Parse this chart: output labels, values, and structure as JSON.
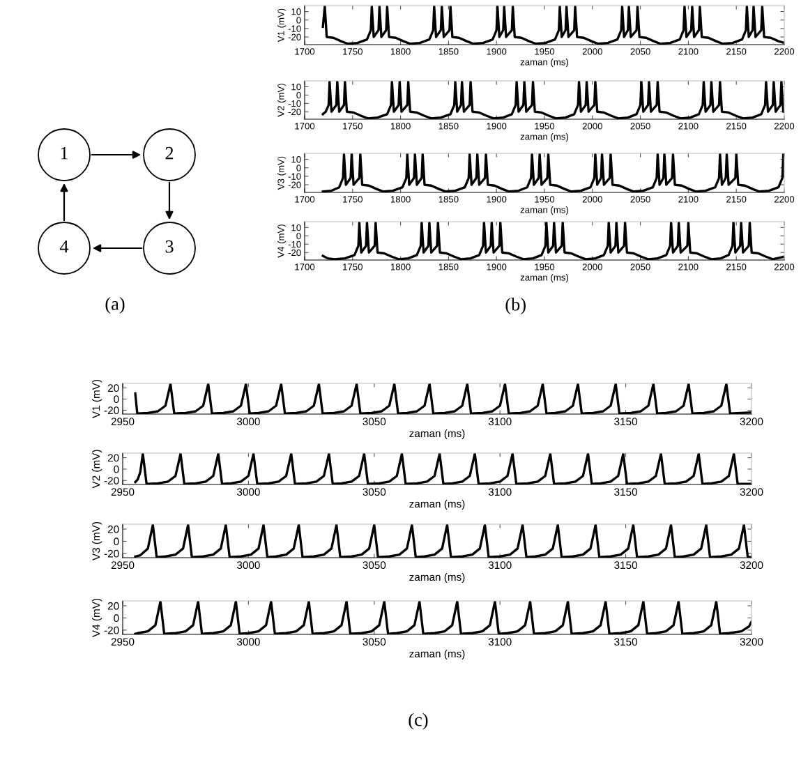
{
  "chart_data": [
    {
      "type": "other",
      "title": "(a)",
      "annotations": [
        "1",
        "2",
        "3",
        "4"
      ]
    },
    {
      "type": "line",
      "xlabel": "zaman (ms)",
      "ylabel": "V1 (mV)",
      "xlim": [
        1700,
        2200
      ],
      "xticks": [
        1700,
        1750,
        1800,
        1850,
        1900,
        1950,
        2000,
        2050,
        2100,
        2150,
        2200
      ],
      "ylim": [
        -29,
        17
      ],
      "yticks": [
        -20,
        -10,
        0,
        10
      ],
      "series": [
        {
          "color": "#000000",
          "x": [
            1719,
            1721,
            1723,
            1730,
            1738,
            1745,
            1755,
            1765,
            1769,
            1770,
            1772,
            1777,
            1778,
            1780,
            1785,
            1786,
            1788,
            1795,
            1803,
            1810,
            1820,
            1830,
            1834,
            1835,
            1837,
            1842,
            1843,
            1845,
            1851,
            1852,
            1854,
            1861,
            1869,
            1876,
            1886,
            1896,
            1900,
            1901,
            1903,
            1907,
            1908,
            1910,
            1916,
            1917,
            1919,
            1926,
            1934,
            1941,
            1951,
            1961,
            1965,
            1966,
            1968,
            1972,
            1973,
            1975,
            1981,
            1982,
            1984,
            1991,
            1999,
            2006,
            2016,
            2026,
            2030,
            2031,
            2033,
            2037,
            2038,
            2040,
            2046,
            2047,
            2049,
            2056,
            2064,
            2071,
            2081,
            2091,
            2095,
            2096,
            2098,
            2103,
            2104,
            2106,
            2111,
            2112,
            2114,
            2121,
            2129,
            2136,
            2146,
            2156,
            2160,
            2161,
            2163,
            2167,
            2168,
            2170,
            2176,
            2177,
            2179,
            2186,
            2194,
            2200
          ],
          "values": [
            -8,
            16,
            -20,
            -21,
            -25,
            -28,
            -27,
            -23,
            -12,
            16,
            -20,
            -12,
            16,
            -20,
            -12,
            16,
            -20,
            -21,
            -25,
            -28,
            -27,
            -23,
            -12,
            16,
            -20,
            -12,
            16,
            -20,
            -12,
            16,
            -20,
            -21,
            -25,
            -28,
            -27,
            -23,
            -12,
            16,
            -20,
            -12,
            16,
            -20,
            -12,
            16,
            -20,
            -21,
            -25,
            -28,
            -27,
            -23,
            -12,
            16,
            -20,
            -12,
            16,
            -20,
            -12,
            16,
            -20,
            -21,
            -25,
            -28,
            -27,
            -23,
            -12,
            16,
            -20,
            -12,
            16,
            -20,
            -12,
            16,
            -20,
            -21,
            -25,
            -28,
            -27,
            -23,
            -12,
            16,
            -20,
            -12,
            16,
            -20,
            -12,
            16,
            -20,
            -21,
            -25,
            -28,
            -27,
            -23,
            -12,
            16,
            -20,
            -12,
            16,
            -20,
            -12,
            16,
            -20,
            -21,
            -25,
            -27
          ]
        }
      ]
    },
    {
      "type": "line",
      "xlabel": "zaman (ms)",
      "ylabel": "V2 (mV)",
      "xlim": [
        1700,
        2200
      ],
      "xticks": [
        1700,
        1750,
        1800,
        1850,
        1900,
        1950,
        2000,
        2050,
        2100,
        2150,
        2200
      ],
      "ylim": [
        -29,
        17
      ],
      "yticks": [
        -20,
        -10,
        0,
        10
      ],
      "series": [
        {
          "color": "#000000",
          "x": [
            1719,
            1722,
            1725,
            1726,
            1728,
            1733,
            1734,
            1736,
            1741,
            1742,
            1744,
            1751,
            1759,
            1766,
            1776,
            1786,
            1790,
            1791,
            1793,
            1798,
            1799,
            1801,
            1807,
            1808,
            1810,
            1817,
            1825,
            1832,
            1842,
            1852,
            1856,
            1857,
            1859,
            1863,
            1864,
            1866,
            1872,
            1873,
            1875,
            1882,
            1890,
            1897,
            1907,
            1916,
            1920,
            1921,
            1923,
            1928,
            1929,
            1931,
            1937,
            1938,
            1940,
            1947,
            1955,
            1962,
            1972,
            1981,
            1985,
            1986,
            1988,
            1993,
            1994,
            1996,
            2002,
            2003,
            2005,
            2012,
            2020,
            2027,
            2037,
            2046,
            2050,
            2051,
            2053,
            2058,
            2059,
            2061,
            2067,
            2068,
            2070,
            2077,
            2085,
            2092,
            2102,
            2111,
            2115,
            2116,
            2118,
            2123,
            2124,
            2126,
            2132,
            2133,
            2135,
            2142,
            2150,
            2157,
            2167,
            2176,
            2180,
            2181,
            2183,
            2188,
            2189,
            2191,
            2196,
            2197,
            2199,
            2200
          ],
          "values": [
            -23,
            -20,
            -12,
            16,
            -20,
            -12,
            16,
            -20,
            -12,
            16,
            -20,
            -21,
            -25,
            -28,
            -27,
            -23,
            -12,
            16,
            -20,
            -12,
            16,
            -20,
            -12,
            16,
            -20,
            -21,
            -25,
            -28,
            -27,
            -23,
            -12,
            16,
            -20,
            -12,
            16,
            -20,
            -12,
            16,
            -20,
            -21,
            -25,
            -28,
            -27,
            -23,
            -12,
            16,
            -20,
            -12,
            16,
            -20,
            -12,
            16,
            -20,
            -21,
            -25,
            -28,
            -27,
            -23,
            -12,
            16,
            -20,
            -12,
            16,
            -20,
            -12,
            16,
            -20,
            -21,
            -25,
            -28,
            -27,
            -23,
            -12,
            16,
            -20,
            -12,
            16,
            -20,
            -12,
            16,
            -20,
            -21,
            -25,
            -28,
            -27,
            -23,
            -12,
            16,
            -20,
            -12,
            16,
            -20,
            -12,
            16,
            -20,
            -21,
            -25,
            -28,
            -27,
            -23,
            -12,
            16,
            -20,
            -12,
            16,
            -20,
            -12,
            16,
            -20,
            -20
          ]
        }
      ]
    },
    {
      "type": "line",
      "xlabel": "zaman (ms)",
      "ylabel": "V3 (mV)",
      "xlim": [
        1700,
        2200
      ],
      "xticks": [
        1700,
        1750,
        1800,
        1850,
        1900,
        1950,
        2000,
        2050,
        2100,
        2150,
        2200
      ],
      "ylim": [
        -29,
        17
      ],
      "yticks": [
        -20,
        -10,
        0,
        10
      ],
      "series": [
        {
          "color": "#000000",
          "x": [
            1719,
            1728,
            1736,
            1740,
            1741,
            1743,
            1748,
            1749,
            1751,
            1757,
            1758,
            1760,
            1767,
            1775,
            1782,
            1792,
            1802,
            1806,
            1807,
            1809,
            1814,
            1815,
            1817,
            1822,
            1823,
            1825,
            1832,
            1840,
            1847,
            1857,
            1867,
            1871,
            1872,
            1874,
            1879,
            1880,
            1882,
            1888,
            1889,
            1891,
            1898,
            1906,
            1913,
            1923,
            1932,
            1936,
            1937,
            1939,
            1944,
            1945,
            1947,
            1953,
            1954,
            1956,
            1963,
            1971,
            1978,
            1988,
            1998,
            2002,
            2003,
            2005,
            2009,
            2010,
            2012,
            2018,
            2019,
            2021,
            2028,
            2036,
            2043,
            2053,
            2063,
            2067,
            2068,
            2070,
            2074,
            2075,
            2077,
            2083,
            2084,
            2086,
            2093,
            2101,
            2108,
            2118,
            2128,
            2132,
            2133,
            2135,
            2139,
            2140,
            2142,
            2149,
            2150,
            2152,
            2159,
            2167,
            2174,
            2184,
            2194,
            2198,
            2199,
            2200
          ],
          "values": [
            -28,
            -27,
            -23,
            -12,
            16,
            -20,
            -12,
            16,
            -20,
            -12,
            16,
            -20,
            -21,
            -25,
            -28,
            -27,
            -23,
            -12,
            16,
            -20,
            -12,
            16,
            -20,
            -12,
            16,
            -20,
            -21,
            -25,
            -28,
            -27,
            -23,
            -12,
            16,
            -20,
            -12,
            16,
            -20,
            -12,
            16,
            -20,
            -21,
            -25,
            -28,
            -27,
            -23,
            -12,
            16,
            -20,
            -12,
            16,
            -20,
            -12,
            16,
            -20,
            -21,
            -25,
            -28,
            -27,
            -23,
            -12,
            16,
            -20,
            -12,
            16,
            -20,
            -12,
            16,
            -20,
            -21,
            -25,
            -28,
            -27,
            -23,
            -12,
            16,
            -20,
            -12,
            16,
            -20,
            -12,
            16,
            -20,
            -21,
            -25,
            -28,
            -27,
            -23,
            -12,
            16,
            -20,
            -12,
            16,
            -20,
            -12,
            16,
            -20,
            -21,
            -25,
            -28,
            -27,
            -23,
            -12,
            16,
            -10
          ]
        }
      ]
    },
    {
      "type": "line",
      "xlabel": "zaman (ms)",
      "ylabel": "V4 (mV)",
      "xlim": [
        1700,
        2200
      ],
      "xticks": [
        1700,
        1750,
        1800,
        1850,
        1900,
        1950,
        2000,
        2050,
        2100,
        2150,
        2200
      ],
      "ylim": [
        -29,
        17
      ],
      "yticks": [
        -20,
        -10,
        0,
        10
      ],
      "annotations": [
        "(b)"
      ],
      "series": [
        {
          "color": "#000000",
          "x": [
            1719,
            1724,
            1731,
            1742,
            1752,
            1756,
            1757,
            1759,
            1764,
            1765,
            1767,
            1773,
            1774,
            1776,
            1783,
            1791,
            1798,
            1808,
            1817,
            1821,
            1822,
            1824,
            1829,
            1830,
            1832,
            1838,
            1839,
            1841,
            1848,
            1856,
            1863,
            1873,
            1882,
            1886,
            1887,
            1889,
            1894,
            1895,
            1897,
            1903,
            1904,
            1906,
            1913,
            1921,
            1928,
            1938,
            1947,
            1951,
            1952,
            1954,
            1959,
            1960,
            1962,
            1968,
            1969,
            1971,
            1978,
            1986,
            1993,
            2003,
            2012,
            2016,
            2017,
            2019,
            2024,
            2025,
            2027,
            2033,
            2034,
            2036,
            2043,
            2051,
            2058,
            2068,
            2077,
            2081,
            2082,
            2084,
            2089,
            2090,
            2092,
            2099,
            2100,
            2102,
            2109,
            2117,
            2124,
            2134,
            2142,
            2146,
            2147,
            2149,
            2154,
            2155,
            2157,
            2163,
            2164,
            2166,
            2173,
            2181,
            2188,
            2200
          ],
          "values": [
            -24,
            -27,
            -28,
            -27,
            -23,
            -12,
            16,
            -20,
            -12,
            16,
            -20,
            -12,
            16,
            -20,
            -21,
            -25,
            -28,
            -27,
            -23,
            -12,
            16,
            -20,
            -12,
            16,
            -20,
            -12,
            16,
            -20,
            -21,
            -25,
            -28,
            -27,
            -23,
            -12,
            16,
            -20,
            -12,
            16,
            -20,
            -12,
            16,
            -20,
            -21,
            -25,
            -28,
            -27,
            -23,
            -12,
            16,
            -20,
            -12,
            16,
            -20,
            -12,
            16,
            -20,
            -21,
            -25,
            -28,
            -27,
            -23,
            -12,
            16,
            -20,
            -12,
            16,
            -20,
            -12,
            16,
            -20,
            -21,
            -25,
            -28,
            -27,
            -23,
            -12,
            16,
            -20,
            -12,
            16,
            -20,
            -12,
            16,
            -20,
            -21,
            -25,
            -28,
            -27,
            -23,
            -12,
            16,
            -20,
            -12,
            16,
            -20,
            -12,
            16,
            -20,
            -21,
            -25,
            -28,
            -25
          ]
        }
      ]
    },
    {
      "type": "line",
      "xlabel": "zaman (ms)",
      "ylabel": "V1 (mV)",
      "xlim": [
        2950,
        3200
      ],
      "xticks": [
        2950,
        3000,
        3050,
        3100,
        3150,
        3200
      ],
      "ylim": [
        -27,
        28
      ],
      "yticks": [
        -20,
        0,
        20
      ],
      "series": [
        {
          "color": "#000000",
          "x": [
            2955,
            2955.8,
            2960,
            2964,
            2967,
            2969,
            2970.5,
            2975,
            2979,
            2982,
            2984,
            2985.5,
            2990,
            2994,
            2997,
            2999,
            3000.5,
            3004,
            3008,
            3011,
            3013,
            3014.5,
            3019,
            3023,
            3026,
            3028,
            3029.5,
            3034,
            3038,
            3041,
            3043,
            3044.5,
            3049,
            3053,
            3056,
            3058,
            3059.5,
            3063,
            3067,
            3070,
            3072,
            3073.5,
            3078,
            3082,
            3085,
            3087,
            3088.5,
            3093,
            3097,
            3100,
            3102,
            3103.5,
            3108,
            3112,
            3115,
            3117,
            3118.5,
            3122,
            3126,
            3129,
            3131,
            3132.5,
            3137,
            3141,
            3144,
            3146,
            3147.5,
            3152,
            3156,
            3159,
            3161,
            3162.5,
            3166,
            3170,
            3173,
            3175,
            3176.5,
            3181,
            3185,
            3188,
            3190,
            3191.5,
            3200
          ],
          "values": [
            10,
            -26,
            -25,
            -22,
            -12,
            27,
            -26,
            -25,
            -22,
            -12,
            27,
            -26,
            -25,
            -22,
            -12,
            27,
            -26,
            -25,
            -22,
            -12,
            27,
            -26,
            -25,
            -22,
            -12,
            27,
            -26,
            -25,
            -22,
            -12,
            27,
            -26,
            -25,
            -22,
            -12,
            27,
            -26,
            -25,
            -22,
            -12,
            27,
            -26,
            -25,
            -22,
            -12,
            27,
            -26,
            -25,
            -22,
            -12,
            27,
            -26,
            -25,
            -22,
            -12,
            27,
            -26,
            -25,
            -22,
            -12,
            27,
            -26,
            -25,
            -22,
            -12,
            27,
            -26,
            -25,
            -22,
            -12,
            27,
            -26,
            -25,
            -22,
            -12,
            27,
            -26,
            -25,
            -22,
            -12,
            27,
            -26,
            -24
          ]
        }
      ]
    },
    {
      "type": "line",
      "xlabel": "zaman (ms)",
      "ylabel": "V2 (mV)",
      "xlim": [
        2950,
        3200
      ],
      "xticks": [
        2950,
        3000,
        3050,
        3100,
        3150,
        3200
      ],
      "ylim": [
        -27,
        28
      ],
      "yticks": [
        -20,
        0,
        20
      ],
      "series": [
        {
          "color": "#000000",
          "x": [
            2955,
            2956,
            2957,
            2958,
            2959.5,
            2964,
            2968,
            2971,
            2973,
            2974.5,
            2979,
            2983,
            2986,
            2988,
            2989.5,
            2993,
            2997,
            3000,
            3002,
            3003.5,
            3008,
            3012,
            3015,
            3017,
            3018.5,
            3023,
            3027,
            3030,
            3032,
            3033.5,
            3037,
            3041,
            3044,
            3046,
            3047.5,
            3052,
            3056,
            3059,
            3061,
            3062.5,
            3067,
            3071,
            3074,
            3076,
            3077.5,
            3081,
            3085,
            3088,
            3090,
            3091.5,
            3096,
            3100,
            3103,
            3105,
            3106.5,
            3111,
            3115,
            3118,
            3120,
            3121.5,
            3126,
            3130,
            3133,
            3135,
            3136.5,
            3140,
            3144,
            3147,
            3149,
            3150.5,
            3155,
            3159,
            3162,
            3164,
            3165.5,
            3170,
            3174,
            3177,
            3179,
            3180.5,
            3184,
            3188,
            3191,
            3193,
            3194.5,
            3200
          ],
          "values": [
            -23,
            -18,
            -5,
            27,
            -26,
            -25,
            -22,
            -12,
            27,
            -26,
            -25,
            -22,
            -12,
            27,
            -26,
            -25,
            -22,
            -12,
            27,
            -26,
            -25,
            -22,
            -12,
            27,
            -26,
            -25,
            -22,
            -12,
            27,
            -26,
            -25,
            -22,
            -12,
            27,
            -26,
            -25,
            -22,
            -12,
            27,
            -26,
            -25,
            -22,
            -12,
            27,
            -26,
            -25,
            -22,
            -12,
            27,
            -26,
            -25,
            -22,
            -12,
            27,
            -26,
            -25,
            -22,
            -12,
            27,
            -26,
            -25,
            -22,
            -12,
            27,
            -26,
            -25,
            -22,
            -12,
            27,
            -26,
            -25,
            -22,
            -12,
            27,
            -26,
            -25,
            -22,
            -12,
            27,
            -26,
            -25,
            -22,
            -12,
            27,
            -26,
            -26
          ]
        }
      ]
    },
    {
      "type": "line",
      "xlabel": "zaman (ms)",
      "ylabel": "V3 (mV)",
      "xlim": [
        2950,
        3200
      ],
      "xticks": [
        2950,
        3000,
        3050,
        3100,
        3150,
        3200
      ],
      "ylim": [
        -27,
        28
      ],
      "yticks": [
        -20,
        0,
        20
      ],
      "series": [
        {
          "color": "#000000",
          "x": [
            2955,
            2957,
            2960,
            2962,
            2963.5,
            2967,
            2971,
            2974,
            2976,
            2977.5,
            2982,
            2986,
            2989,
            2991,
            2992.5,
            2997,
            3001,
            3004,
            3006,
            3007.5,
            3011,
            3015,
            3018,
            3020,
            3021.5,
            3026,
            3030,
            3033,
            3035,
            3036.5,
            3041,
            3045,
            3048,
            3050,
            3051.5,
            3056,
            3060,
            3063,
            3065,
            3066.5,
            3070,
            3074,
            3077,
            3079,
            3080.5,
            3085,
            3089,
            3092,
            3094,
            3095.5,
            3100,
            3104,
            3107,
            3109,
            3110.5,
            3114,
            3118,
            3121,
            3123,
            3124.5,
            3129,
            3133,
            3136,
            3138,
            3139.5,
            3144,
            3148,
            3151,
            3153,
            3154.5,
            3159,
            3163,
            3166,
            3168,
            3169.5,
            3173,
            3177,
            3180,
            3182,
            3183.5,
            3188,
            3192,
            3195,
            3197,
            3198.5,
            3200
          ],
          "values": [
            -25,
            -23,
            -12,
            27,
            -26,
            -25,
            -22,
            -12,
            27,
            -26,
            -25,
            -22,
            -12,
            27,
            -26,
            -25,
            -22,
            -12,
            27,
            -26,
            -25,
            -22,
            -12,
            27,
            -26,
            -25,
            -22,
            -12,
            27,
            -26,
            -25,
            -22,
            -12,
            27,
            -26,
            -25,
            -22,
            -12,
            27,
            -26,
            -25,
            -22,
            -12,
            27,
            -26,
            -25,
            -22,
            -12,
            27,
            -26,
            -25,
            -22,
            -12,
            27,
            -26,
            -25,
            -22,
            -12,
            27,
            -26,
            -25,
            -22,
            -12,
            27,
            -26,
            -25,
            -22,
            -12,
            27,
            -26,
            -25,
            -22,
            -12,
            27,
            -26,
            -25,
            -22,
            -12,
            27,
            -26,
            -25,
            -22,
            -12,
            27,
            -26,
            -26
          ]
        }
      ]
    },
    {
      "type": "line",
      "xlabel": "zaman (ms)",
      "ylabel": "V4 (mV)",
      "xlim": [
        2950,
        3200
      ],
      "xticks": [
        2950,
        3000,
        3050,
        3100,
        3150,
        3200
      ],
      "ylim": [
        -27,
        28
      ],
      "yticks": [
        -20,
        0,
        20
      ],
      "annotations": [
        "(c)"
      ],
      "series": [
        {
          "color": "#000000",
          "x": [
            2955,
            2956,
            2960,
            2963,
            2965,
            2966.5,
            2971,
            2975,
            2978,
            2980,
            2981.5,
            2986,
            2990,
            2993,
            2995,
            2996.5,
            3000,
            3004,
            3007,
            3009,
            3010.5,
            3015,
            3019,
            3022,
            3024,
            3025.5,
            3030,
            3034,
            3037,
            3039,
            3040.5,
            3045,
            3049,
            3052,
            3054,
            3055.5,
            3059,
            3063,
            3066,
            3068,
            3069.5,
            3074,
            3078,
            3081,
            3083,
            3084.5,
            3089,
            3093,
            3096,
            3098,
            3099.5,
            3103,
            3107,
            3110,
            3112,
            3113.5,
            3118,
            3122,
            3125,
            3127,
            3128.5,
            3133,
            3137,
            3140,
            3142,
            3143.5,
            3148,
            3152,
            3155,
            3157,
            3158.5,
            3162,
            3166,
            3169,
            3171,
            3172.5,
            3177,
            3181,
            3184,
            3186,
            3187.5,
            3191,
            3196,
            3199,
            3200
          ],
          "values": [
            -26,
            -25,
            -22,
            -12,
            27,
            -26,
            -25,
            -22,
            -12,
            27,
            -26,
            -25,
            -22,
            -12,
            27,
            -26,
            -25,
            -22,
            -12,
            27,
            -26,
            -25,
            -22,
            -12,
            27,
            -26,
            -25,
            -22,
            -12,
            27,
            -26,
            -25,
            -22,
            -12,
            27,
            -26,
            -25,
            -22,
            -12,
            27,
            -26,
            -25,
            -22,
            -12,
            27,
            -26,
            -25,
            -22,
            -12,
            27,
            -26,
            -25,
            -22,
            -12,
            27,
            -26,
            -25,
            -22,
            -12,
            27,
            -26,
            -25,
            -22,
            -12,
            27,
            -26,
            -25,
            -22,
            -12,
            27,
            -26,
            -25,
            -22,
            -12,
            27,
            -26,
            -25,
            -22,
            -12,
            27,
            -26,
            -25,
            -22,
            -14,
            -6
          ]
        }
      ]
    }
  ]
}
